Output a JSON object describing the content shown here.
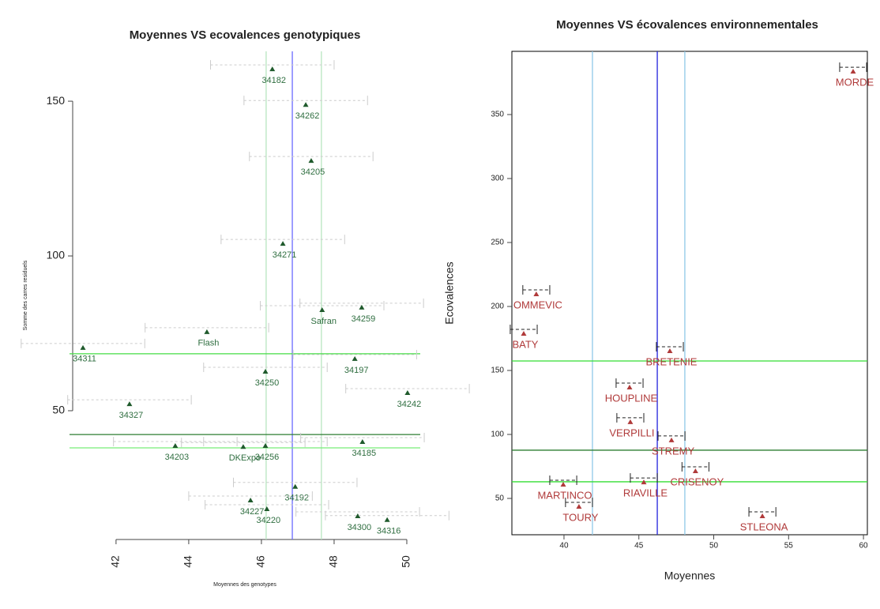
{
  "chart_data": [
    {
      "type": "scatter",
      "title": "Moyennes VS ecovalences genotypiques",
      "x_label": "Moyennes des genotypes",
      "y_label": "Somme des carres residuels",
      "labels": [
        "34182",
        "34262",
        "34205",
        "34271",
        "Safran",
        "34259",
        "Flash",
        "34311",
        "34197",
        "34250",
        "34242",
        "34327",
        "34203",
        "DKExpo",
        "34256",
        "34192",
        "34227",
        "34220",
        "34300",
        "34316",
        "34185"
      ],
      "x": [
        46.3,
        47.22,
        47.37,
        46.59,
        47.67,
        48.76,
        44.5,
        41.09,
        48.57,
        46.11,
        50.02,
        42.37,
        43.63,
        45.5,
        46.11,
        46.93,
        45.7,
        46.15,
        48.65,
        49.46,
        48.78
      ],
      "values": [
        160.2,
        148.7,
        130.6,
        103.8,
        82.4,
        83.2,
        75.3,
        70.2,
        66.6,
        62.5,
        55.6,
        52.0,
        38.5,
        38.2,
        38.5,
        25.3,
        20.9,
        18.1,
        15.8,
        14.6,
        39.8
      ],
      "xerr": [
        1.7,
        1.7,
        1.7,
        1.7,
        1.7,
        1.7,
        1.7,
        1.7,
        1.7,
        1.7,
        1.7,
        1.7,
        1.7,
        1.7,
        1.7,
        1.7,
        1.7,
        1.7,
        1.7,
        1.7,
        1.7
      ],
      "color": "#1f5a2c",
      "label_color": "#2f6e40",
      "xlim": [
        40.72,
        50.37
      ],
      "ylim": [
        8.4,
        166.1
      ],
      "xticks": [
        42,
        44,
        46,
        48,
        50
      ],
      "yticks": [
        50,
        100,
        150
      ],
      "vlines": [
        {
          "value": 46.85,
          "color": "#6a6aff"
        },
        {
          "value": 46.13,
          "color": "#b8e6c0"
        },
        {
          "value": 47.65,
          "color": "#b8e6c0"
        }
      ],
      "hlines": [
        {
          "value": 68.4,
          "color": "#44dd44"
        },
        {
          "value": 42.3,
          "color": "#2e7d32"
        },
        {
          "value": 38.0,
          "color": "#77ee77"
        }
      ]
    },
    {
      "type": "scatter",
      "title": "Moyennes VS écovalences environnementales",
      "x_label": "Moyennes",
      "y_label": "Ecovalences",
      "labels": [
        "MORDE",
        "OMMEVIC",
        "BATY",
        "BRETENIE",
        "HOUPLINE",
        "VERPILLI",
        "STREMY",
        "CRISENOY",
        "RIAVILLE",
        "MARTINCO",
        "TOURY",
        "STLEONA"
      ],
      "x": [
        59.31,
        38.15,
        37.31,
        47.07,
        44.38,
        44.43,
        47.18,
        48.78,
        45.33,
        39.95,
        41.0,
        53.25
      ],
      "values": [
        383.3,
        209.3,
        178.4,
        164.8,
        136.4,
        109.3,
        95.1,
        71.0,
        62.3,
        60.5,
        43.2,
        35.8
      ],
      "xerr": [
        0.9,
        0.9,
        0.9,
        0.9,
        0.9,
        0.9,
        0.9,
        0.9,
        0.9,
        0.9,
        0.9,
        0.9
      ],
      "color": "#b03a3a",
      "label_color": "#b03a3a",
      "xlim": [
        36.52,
        60.26
      ],
      "ylim": [
        21.6,
        399.4
      ],
      "xticks": [
        40,
        45,
        50,
        55,
        60
      ],
      "yticks": [
        50,
        100,
        150,
        200,
        250,
        300,
        350
      ],
      "vlines": [
        {
          "value": 46.23,
          "color": "#2222dd"
        },
        {
          "value": 41.9,
          "color": "#8fc8e8"
        },
        {
          "value": 48.07,
          "color": "#8fc8e8"
        }
      ],
      "hlines": [
        {
          "value": 157.4,
          "color": "#33dd33"
        },
        {
          "value": 87.7,
          "color": "#2e7d32"
        },
        {
          "value": 63.0,
          "color": "#33dd33"
        }
      ]
    }
  ]
}
